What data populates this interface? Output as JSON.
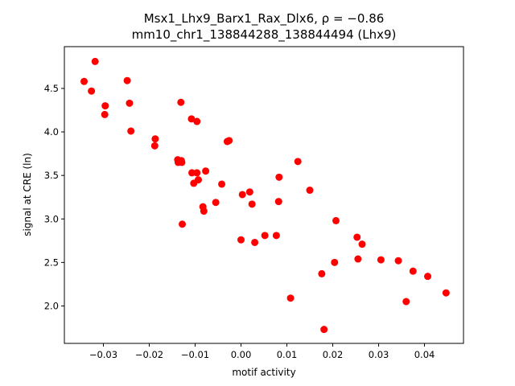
{
  "chart_data": {
    "type": "scatter",
    "title_line1": "Msx1_Lhx9_Barx1_Rax_Dlx6, ρ = −0.86",
    "title_line2": "mm10_chr1_138844288_138844494 (Lhx9)",
    "xlabel": "motif activity",
    "ylabel": "signal at CRE (ln)",
    "xlim": [
      -0.0385,
      0.0485
    ],
    "ylim": [
      1.57,
      4.98
    ],
    "xticks": [
      -0.03,
      -0.02,
      -0.01,
      0.0,
      0.01,
      0.02,
      0.03,
      0.04
    ],
    "xtick_labels": [
      "−0.03",
      "−0.02",
      "−0.01",
      "0.00",
      "0.01",
      "0.02",
      "0.03",
      "0.04"
    ],
    "yticks": [
      2.0,
      2.5,
      3.0,
      3.5,
      4.0,
      4.5
    ],
    "ytick_labels": [
      "2.0",
      "2.5",
      "3.0",
      "3.5",
      "4.0",
      "4.5"
    ],
    "marker_color": "#ff0000",
    "grid": false,
    "points": [
      {
        "x": -0.0342,
        "y": 4.58
      },
      {
        "x": -0.0326,
        "y": 4.47
      },
      {
        "x": -0.0318,
        "y": 4.81
      },
      {
        "x": -0.0296,
        "y": 4.3
      },
      {
        "x": -0.0297,
        "y": 4.2
      },
      {
        "x": -0.0248,
        "y": 4.59
      },
      {
        "x": -0.0243,
        "y": 4.33
      },
      {
        "x": -0.024,
        "y": 4.01
      },
      {
        "x": -0.0187,
        "y": 3.92
      },
      {
        "x": -0.0188,
        "y": 3.84
      },
      {
        "x": -0.0138,
        "y": 3.68
      },
      {
        "x": -0.0137,
        "y": 3.65
      },
      {
        "x": -0.013,
        "y": 3.67
      },
      {
        "x": -0.0129,
        "y": 3.65
      },
      {
        "x": -0.0131,
        "y": 4.34
      },
      {
        "x": -0.0108,
        "y": 4.15
      },
      {
        "x": -0.0096,
        "y": 4.12
      },
      {
        "x": -0.0107,
        "y": 3.53
      },
      {
        "x": -0.0096,
        "y": 3.53
      },
      {
        "x": -0.0103,
        "y": 3.41
      },
      {
        "x": -0.0093,
        "y": 3.45
      },
      {
        "x": -0.0077,
        "y": 3.55
      },
      {
        "x": -0.0083,
        "y": 3.14
      },
      {
        "x": -0.0081,
        "y": 3.09
      },
      {
        "x": -0.0128,
        "y": 2.94
      },
      {
        "x": -0.0055,
        "y": 3.19
      },
      {
        "x": -0.0042,
        "y": 3.4
      },
      {
        "x": -0.003,
        "y": 3.89
      },
      {
        "x": -0.0026,
        "y": 3.9
      },
      {
        "x": 0.0003,
        "y": 3.28
      },
      {
        "x": 0.0019,
        "y": 3.31
      },
      {
        "x": 0.0024,
        "y": 3.17
      },
      {
        "x": 0.0,
        "y": 2.76
      },
      {
        "x": 0.003,
        "y": 2.73
      },
      {
        "x": 0.0052,
        "y": 2.81
      },
      {
        "x": 0.0077,
        "y": 2.81
      },
      {
        "x": 0.0083,
        "y": 3.48
      },
      {
        "x": 0.0082,
        "y": 3.2
      },
      {
        "x": 0.0124,
        "y": 3.66
      },
      {
        "x": 0.015,
        "y": 3.33
      },
      {
        "x": 0.0108,
        "y": 2.09
      },
      {
        "x": 0.0176,
        "y": 2.37
      },
      {
        "x": 0.0181,
        "y": 1.73
      },
      {
        "x": 0.0207,
        "y": 2.98
      },
      {
        "x": 0.0204,
        "y": 2.5
      },
      {
        "x": 0.0253,
        "y": 2.79
      },
      {
        "x": 0.0255,
        "y": 2.54
      },
      {
        "x": 0.0264,
        "y": 2.71
      },
      {
        "x": 0.0305,
        "y": 2.53
      },
      {
        "x": 0.0343,
        "y": 2.52
      },
      {
        "x": 0.036,
        "y": 2.05
      },
      {
        "x": 0.0375,
        "y": 2.4
      },
      {
        "x": 0.0407,
        "y": 2.34
      },
      {
        "x": 0.0447,
        "y": 2.15
      }
    ]
  }
}
